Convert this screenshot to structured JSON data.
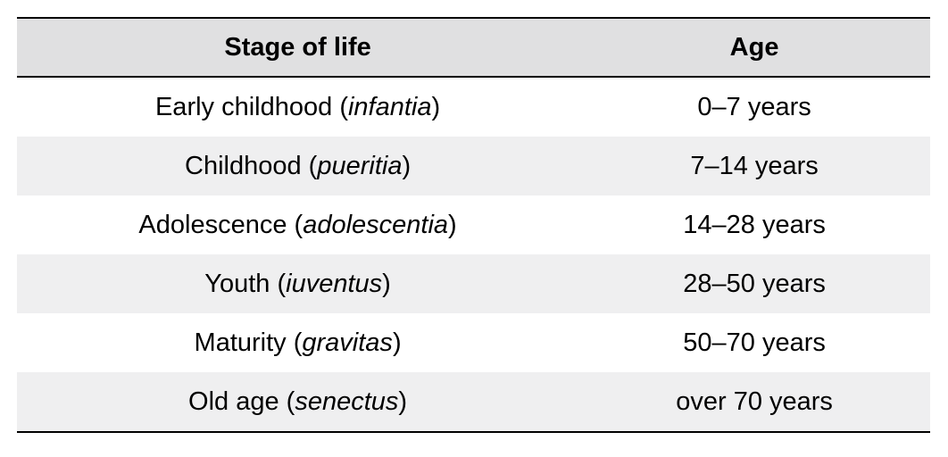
{
  "table": {
    "columns": [
      {
        "label": "Stage of life"
      },
      {
        "label": "Age"
      }
    ],
    "rows": [
      {
        "stage": "Early childhood",
        "latin": "infantia",
        "age": "0–7 years"
      },
      {
        "stage": "Childhood",
        "latin": "pueritia",
        "age": "7–14 years"
      },
      {
        "stage": "Adolescence",
        "latin": "adolescentia",
        "age": "14–28 years"
      },
      {
        "stage": "Youth",
        "latin": "iuventus",
        "age": "28–50 years"
      },
      {
        "stage": "Maturity",
        "latin": "gravitas",
        "age": "50–70 years"
      },
      {
        "stage": "Old age",
        "latin": "senectus",
        "age": "over 70 years"
      }
    ],
    "punctuation": {
      "open": " (",
      "close": ")"
    }
  },
  "colors": {
    "header_bg": "#e0e0e1",
    "stripe_bg": "#efeff0",
    "rule": "#000000",
    "text": "#000000",
    "page_bg": "#ffffff"
  }
}
